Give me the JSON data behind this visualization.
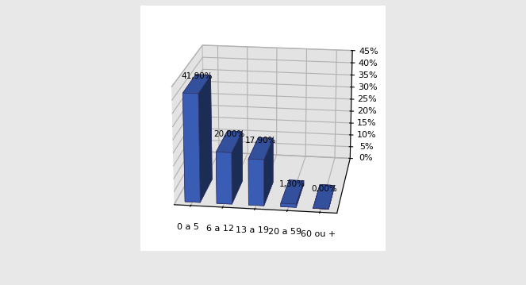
{
  "categories": [
    "0 a 5",
    "6 a 12",
    "13 a 19",
    "20 a 59",
    "60 ou +"
  ],
  "values": [
    41.9,
    20.0,
    17.9,
    1.3,
    0.0
  ],
  "labels": [
    "41,90%",
    "20,00%",
    "17,90%",
    "1,30%",
    "0,00%"
  ],
  "bar_color_face": "#4169CC",
  "bar_color_side": "#1A3A99",
  "bar_color_top": "#6688EE",
  "pane_color": "#C8C8C8",
  "floor_color": "#CCCCCC",
  "background_color": "#E8E8E8",
  "ylim": [
    0,
    45
  ],
  "yticks": [
    0,
    5,
    10,
    15,
    20,
    25,
    30,
    35,
    40,
    45
  ],
  "ytick_labels": [
    "0%",
    "5%",
    "10%",
    "15%",
    "20%",
    "25%",
    "30%",
    "35%",
    "40%",
    "45%"
  ],
  "bar_width": 0.55,
  "bar_depth": 0.35,
  "label_fontsize": 7.5,
  "tick_fontsize": 8,
  "elev": 18,
  "azim": -82
}
